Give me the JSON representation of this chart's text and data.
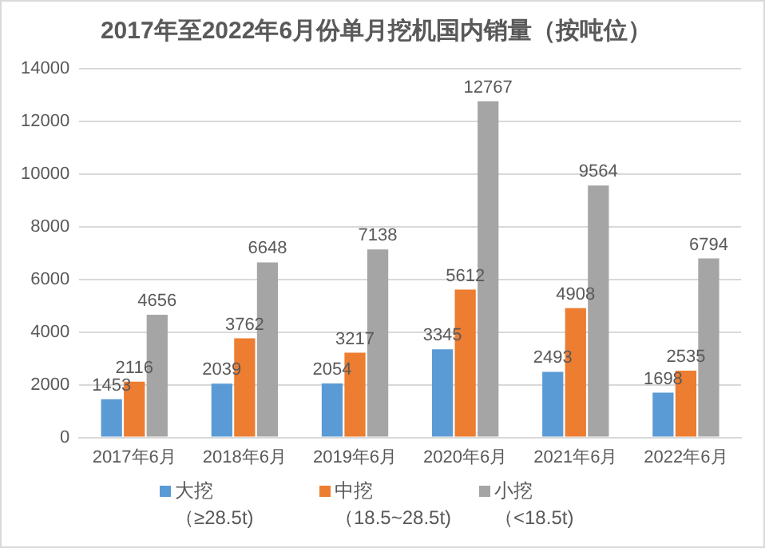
{
  "chart_data": {
    "type": "bar",
    "title": "2017年至2022年6月份单月挖机国内销量（按吨位）",
    "categories": [
      "2017年6月",
      "2018年6月",
      "2019年6月",
      "2020年6月",
      "2021年6月",
      "2022年6月"
    ],
    "series": [
      {
        "name": "大挖（≥28.5t)",
        "color": "#5b9bd5",
        "values": [
          1453,
          2039,
          2054,
          3345,
          2493,
          1698
        ]
      },
      {
        "name": "中挖（18.5~28.5t)",
        "color": "#ed7d31",
        "values": [
          2116,
          3762,
          3217,
          5612,
          4908,
          2535
        ]
      },
      {
        "name": "小挖（<18.5t)",
        "color": "#a5a5a5",
        "values": [
          4656,
          6648,
          7138,
          12767,
          9564,
          6794
        ]
      }
    ],
    "ylim": [
      0,
      14000
    ],
    "yticks": [
      0,
      2000,
      4000,
      6000,
      8000,
      10000,
      12000,
      14000
    ],
    "grid": "y",
    "legend": "bottom",
    "data_labels": true
  }
}
